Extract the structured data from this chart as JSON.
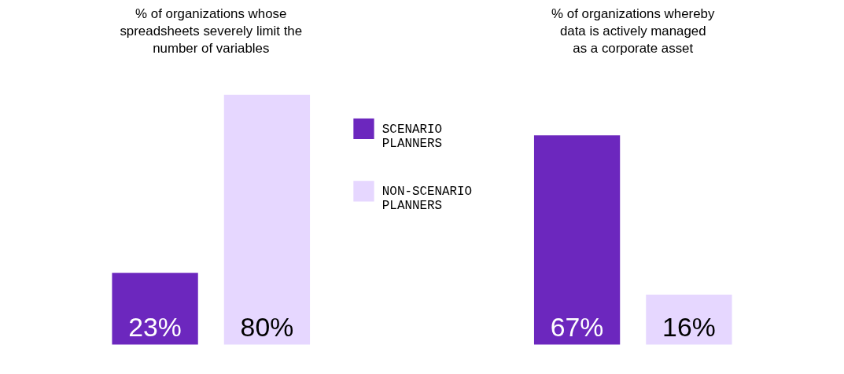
{
  "chart_data": [
    {
      "type": "bar",
      "title": "% of organizations whose\nspreadsheets severely limit the\nnumber of variables",
      "categories": [
        null
      ],
      "legend": "right",
      "series": [
        {
          "name": "SCENARIO PLANNERS",
          "color": "#6c27be",
          "values": [
            23
          ],
          "value_labels": [
            "23%"
          ]
        },
        {
          "name": "NON-SCENARIO PLANNERS",
          "color": "#e6d7ff",
          "values": [
            80
          ],
          "value_labels": [
            "80%"
          ]
        }
      ]
    },
    {
      "type": "bar",
      "title": "% of organizations whereby\ndata is actively managed\nas a corporate asset",
      "categories": [
        null
      ],
      "series": [
        {
          "name": "SCENARIO PLANNERS",
          "color": "#6c27be",
          "values": [
            67
          ],
          "value_labels": [
            "67%"
          ]
        },
        {
          "name": "NON-SCENARIO PLANNERS",
          "color": "#e6d7ff",
          "values": [
            16
          ],
          "value_labels": [
            "16%"
          ]
        }
      ]
    }
  ]
}
